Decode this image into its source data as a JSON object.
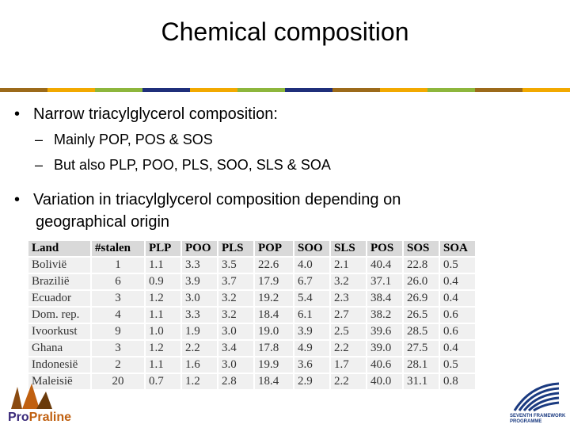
{
  "slide": {
    "title": "Chemical composition",
    "stripe_colors": [
      "#9c6a1a",
      "#f2a900",
      "#8db63c",
      "#1f2f7a",
      "#f2a900",
      "#8db63c",
      "#1f2f7a",
      "#9c6a1a",
      "#f2a900",
      "#8db63c",
      "#9c6a1a",
      "#f2a900"
    ]
  },
  "bullets": {
    "b1": "Narrow triacylglycerol composition:",
    "sub1": "Mainly  POP, POS & SOS",
    "sub2": "But also PLP, POO, PLS, SOO, SLS & SOA",
    "b2_line1": "Variation in triacylglycerol composition depending on",
    "b2_line2": "geographical origin",
    "bullet_char": "•",
    "dash_char": "–"
  },
  "table": {
    "headers": [
      "Land",
      "#stalen",
      "PLP",
      "POO",
      "PLS",
      "POP",
      "SOO",
      "SLS",
      "POS",
      "SOS",
      "SOA"
    ],
    "rows": [
      [
        "Bolivië",
        "1",
        "1.1",
        "3.3",
        "3.5",
        "22.6",
        "4.0",
        "2.1",
        "40.4",
        "22.8",
        "0.5"
      ],
      [
        "Brazilië",
        "6",
        "0.9",
        "3.9",
        "3.7",
        "17.9",
        "6.7",
        "3.2",
        "37.1",
        "26.0",
        "0.4"
      ],
      [
        "Ecuador",
        "3",
        "1.2",
        "3.0",
        "3.2",
        "19.2",
        "5.4",
        "2.3",
        "38.4",
        "26.9",
        "0.4"
      ],
      [
        "Dom. rep.",
        "4",
        "1.1",
        "3.3",
        "3.2",
        "18.4",
        "6.1",
        "2.7",
        "38.2",
        "26.5",
        "0.6"
      ],
      [
        "Ivoorkust",
        "9",
        "1.0",
        "1.9",
        "3.0",
        "19.0",
        "3.9",
        "2.5",
        "39.6",
        "28.5",
        "0.6"
      ],
      [
        "Ghana",
        "3",
        "1.2",
        "2.2",
        "3.4",
        "17.8",
        "4.9",
        "2.2",
        "39.0",
        "27.5",
        "0.4"
      ],
      [
        "Indonesië",
        "2",
        "1.1",
        "1.6",
        "3.0",
        "19.9",
        "3.6",
        "1.7",
        "40.6",
        "28.1",
        "0.5"
      ],
      [
        "Maleisië",
        "20",
        "0.7",
        "1.2",
        "2.8",
        "18.4",
        "2.9",
        "2.2",
        "40.0",
        "31.1",
        "0.8"
      ]
    ]
  },
  "logos": {
    "left_pro1": "Pro",
    "left_pro2": "Praline",
    "right_caption_1": "SEVENTH FRAMEWORK",
    "right_caption_2": "PROGRAMME"
  }
}
